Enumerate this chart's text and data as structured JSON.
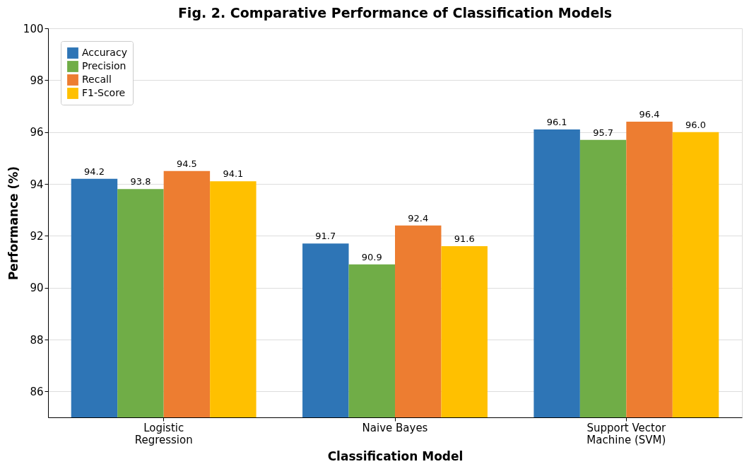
{
  "chart_data": {
    "type": "bar",
    "title": "Fig. 2. Comparative Performance of Classification Models",
    "xlabel": "Classification Model",
    "ylabel": "Performance (%)",
    "categories": [
      "Logistic\nRegression",
      "Naive Bayes",
      "Support Vector\nMachine (SVM)"
    ],
    "series": [
      {
        "name": "Accuracy",
        "color": "#2e75b6",
        "values": [
          94.2,
          91.7,
          96.1
        ],
        "value_labels": [
          "94.2",
          "91.7",
          "96.1"
        ]
      },
      {
        "name": "Precision",
        "color": "#70ad47",
        "values": [
          93.8,
          90.9,
          95.7
        ],
        "value_labels": [
          "93.8",
          "90.9",
          "95.7"
        ]
      },
      {
        "name": "Recall",
        "color": "#ed7d31",
        "values": [
          94.5,
          92.4,
          96.4
        ],
        "value_labels": [
          "94.5",
          "92.4",
          "96.4"
        ]
      },
      {
        "name": "F1-Score",
        "color": "#ffc000",
        "values": [
          94.1,
          91.6,
          96.0
        ],
        "value_labels": [
          "94.1",
          "91.6",
          "96.0"
        ]
      }
    ],
    "ylim": [
      85,
      100
    ],
    "yticks": [
      86,
      88,
      90,
      92,
      94,
      96,
      98,
      100
    ],
    "grid": "y",
    "legend": "top left"
  }
}
